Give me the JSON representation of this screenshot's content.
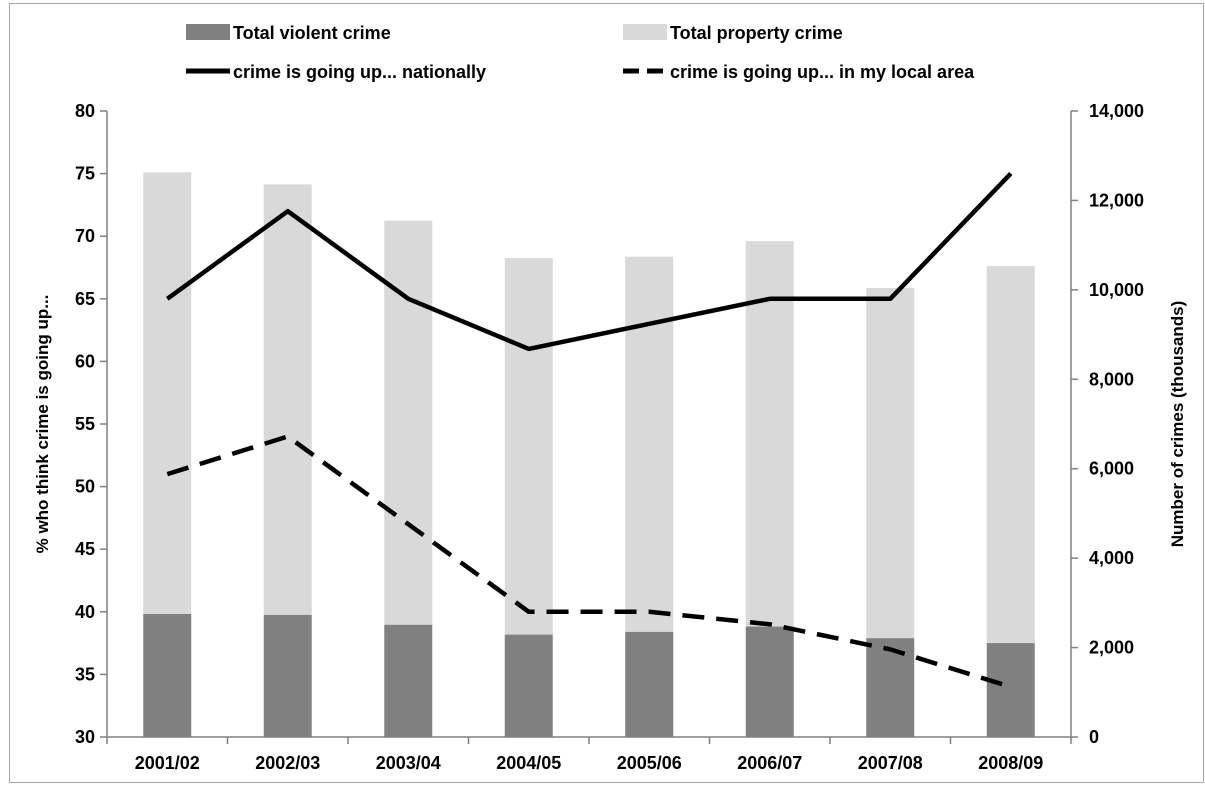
{
  "chart_data": {
    "type": "bar",
    "title": "",
    "categories": [
      "2001/02",
      "2002/03",
      "2003/04",
      "2004/05",
      "2005/06",
      "2006/07",
      "2007/08",
      "2008/09"
    ],
    "series": [
      {
        "name": "Total violent crime",
        "type": "bar",
        "axis": "right",
        "color": "#808080",
        "values": [
          2750,
          2730,
          2510,
          2290,
          2350,
          2470,
          2210,
          2100
        ]
      },
      {
        "name": "Total property crime",
        "type": "bar",
        "axis": "right",
        "color": "#d9d9d9",
        "values": [
          9880,
          9630,
          9040,
          8420,
          8390,
          8620,
          7830,
          8430
        ]
      },
      {
        "name": "crime is going up... nationally",
        "type": "line",
        "axis": "left",
        "color": "#000000",
        "dash": "solid",
        "values": [
          65,
          72,
          65,
          61,
          63,
          65,
          65,
          75
        ]
      },
      {
        "name": "crime is going up... in my local area",
        "type": "line",
        "axis": "left",
        "color": "#000000",
        "dash": "dashed",
        "values": [
          51,
          54,
          47,
          40,
          40,
          39,
          37,
          34
        ]
      }
    ],
    "stacked": true,
    "ylabel": "% who think crime is going up...",
    "ylim": [
      30,
      80
    ],
    "y_ticks": [
      30,
      35,
      40,
      45,
      50,
      55,
      60,
      65,
      70,
      75,
      80
    ],
    "y2label": "Number of crimes (thousands)",
    "y2lim": [
      0,
      14000
    ],
    "y2_ticks": [
      0,
      2000,
      4000,
      6000,
      8000,
      10000,
      12000,
      14000
    ],
    "y2_tick_labels": [
      "0",
      "2,000",
      "4,000",
      "6,000",
      "8,000",
      "10,000",
      "12,000",
      "14,000"
    ],
    "grid": false,
    "legend_position": "top"
  }
}
